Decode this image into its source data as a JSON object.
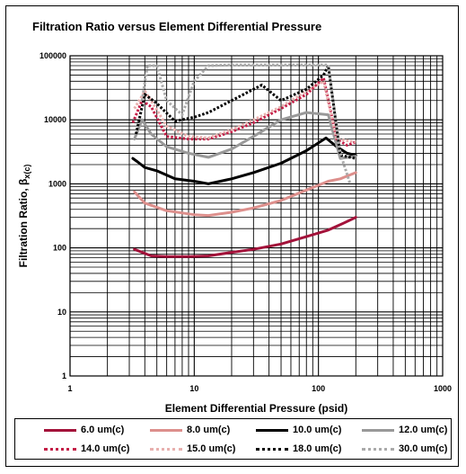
{
  "chart_data": {
    "type": "line",
    "title": "Filtration Ratio versus Element Differential Pressure",
    "xlabel": "Element Differential Pressure (psid)",
    "ylabel": "Filtration Ratio, β",
    "ylabel_sub": "x(c)",
    "x_scale": "log",
    "y_scale": "log",
    "xlim": [
      1,
      1000
    ],
    "ylim": [
      1,
      100000
    ],
    "x_ticks": [
      "1",
      "10",
      "100",
      "1000"
    ],
    "y_ticks": [
      "1",
      "10",
      "100",
      "1000",
      "10000",
      "100000"
    ],
    "grid": true,
    "legend_position": "bottom",
    "series": [
      {
        "name": "6.0 um(c)",
        "color": "#a3123a",
        "style": "solid",
        "x": [
          3.3,
          4.5,
          6,
          9,
          13,
          20,
          30,
          50,
          80,
          120,
          150,
          200
        ],
        "y": [
          95,
          75,
          73,
          73,
          75,
          85,
          95,
          115,
          150,
          190,
          230,
          300
        ]
      },
      {
        "name": "8.0 um(c)",
        "color": "#dd8f8c",
        "style": "solid",
        "x": [
          3.3,
          4,
          6,
          10,
          13,
          20,
          30,
          50,
          80,
          120,
          150,
          200
        ],
        "y": [
          750,
          500,
          380,
          330,
          320,
          360,
          420,
          550,
          800,
          1100,
          1200,
          1500
        ]
      },
      {
        "name": "10.0 um(c)",
        "color": "#000000",
        "style": "solid",
        "x": [
          3.2,
          3.5,
          4,
          5,
          7,
          10,
          13,
          20,
          30,
          50,
          80,
          115,
          140,
          170,
          200
        ],
        "y": [
          2500,
          2200,
          1800,
          1600,
          1200,
          1100,
          1000,
          1200,
          1500,
          2100,
          3300,
          5200,
          3800,
          3000,
          2800
        ]
      },
      {
        "name": "12.0 um(c)",
        "color": "#999999",
        "style": "solid",
        "x": [
          3.3,
          3.8,
          4.5,
          6,
          9,
          13,
          20,
          30,
          50,
          80,
          120,
          150,
          200
        ],
        "y": [
          5000,
          10000,
          6000,
          3800,
          3000,
          2600,
          3500,
          5500,
          10000,
          13000,
          12000,
          2500,
          2700
        ]
      },
      {
        "name": "14.0 um(c)",
        "color": "#c41e47",
        "style": "dotted",
        "x": [
          3.2,
          3.8,
          4.5,
          6,
          9,
          13,
          20,
          30,
          50,
          80,
          110,
          140,
          170,
          200
        ],
        "y": [
          9000,
          20000,
          16000,
          5500,
          5000,
          5000,
          6500,
          9000,
          15000,
          25000,
          45000,
          5000,
          4000,
          4500
        ]
      },
      {
        "name": "15.0 um(c)",
        "color": "#e8b0ae",
        "style": "dotted",
        "x": [
          3.3,
          4,
          4.5,
          6,
          9,
          13,
          20,
          30,
          50,
          80,
          110,
          140,
          200
        ],
        "y": [
          15000,
          28000,
          20000,
          8000,
          5500,
          5200,
          7000,
          10000,
          16000,
          28000,
          40000,
          5000,
          4500
        ]
      },
      {
        "name": "18.0 um(c)",
        "color": "#000000",
        "style": "dotted",
        "x": [
          3.4,
          4,
          5,
          7,
          10,
          13,
          20,
          35,
          50,
          80,
          110,
          120,
          150,
          200
        ],
        "y": [
          6000,
          25000,
          18000,
          9500,
          11000,
          13000,
          20000,
          35000,
          20000,
          30000,
          50000,
          70000,
          2800,
          2500
        ]
      },
      {
        "name": "30.0 um(c)",
        "color": "#aaaaaa",
        "style": "dotted",
        "x": [
          3.8,
          4.2,
          5,
          6,
          8,
          10,
          13,
          20,
          40,
          80,
          120,
          150,
          180
        ],
        "y": [
          20000,
          70000,
          70000,
          20000,
          12000,
          40000,
          70000,
          72000,
          72000,
          72000,
          72000,
          3000,
          1000
        ]
      }
    ]
  }
}
